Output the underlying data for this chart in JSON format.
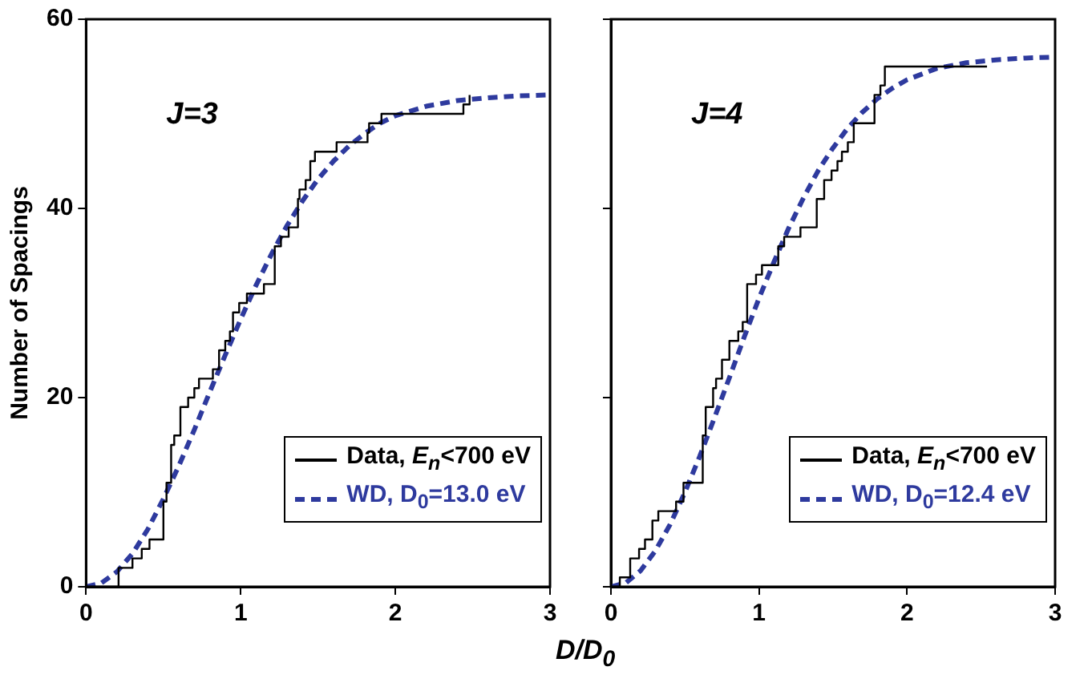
{
  "chart_data": [
    {
      "type": "line",
      "xlabel": "D/D$_{0}$",
      "ylabel": "Number of Spacings",
      "xlim": [
        0,
        3
      ],
      "xticks": [
        0,
        1,
        2,
        3
      ],
      "ylim": [
        0,
        60
      ],
      "yticks": [
        0,
        20,
        40,
        60
      ],
      "grid": false,
      "legend": "bottom right",
      "marker": "none",
      "annotations": [
        "J=3"
      ],
      "series": [
        {
          "name": "Data, E$_{n}$<700 eV",
          "type": "step",
          "color": "#000000",
          "line_style": "solid",
          "x": [
            0,
            0.21,
            0.3,
            0.36,
            0.41,
            0.5,
            0.52,
            0.55,
            0.57,
            0.61,
            0.66,
            0.7,
            0.73,
            0.82,
            0.86,
            0.9,
            0.93,
            0.95,
            0.99,
            1.04,
            1.15,
            1.22,
            1.26,
            1.31,
            1.37,
            1.38,
            1.42,
            1.45,
            1.48,
            1.62,
            1.82,
            1.83,
            1.91,
            2.44,
            2.48
          ],
          "values": [
            0,
            2,
            3,
            4,
            5,
            9,
            11,
            15,
            16,
            19,
            20,
            21,
            22,
            23,
            25,
            26,
            27,
            29,
            30,
            31,
            32,
            36,
            37,
            38,
            41,
            42,
            43,
            45,
            46,
            47,
            48,
            49,
            50,
            51,
            52
          ]
        },
        {
          "name": "WD, D$_{0}$=13.0 eV",
          "type": "line",
          "color": "#2e3a9e",
          "line_style": "dashed",
          "x": [
            0,
            0.1,
            0.2,
            0.3,
            0.4,
            0.5,
            0.6,
            0.7,
            0.8,
            0.9,
            1.0,
            1.1,
            1.2,
            1.3,
            1.4,
            1.5,
            1.6,
            1.7,
            1.8,
            1.9,
            2.0,
            2.2,
            2.4,
            2.6,
            2.8,
            3.0
          ],
          "values": [
            0,
            0.4,
            1.6,
            3.5,
            6.1,
            9.3,
            12.8,
            16.6,
            20.6,
            24.5,
            28.3,
            31.9,
            35.2,
            38.2,
            40.8,
            43.1,
            45.0,
            46.6,
            47.9,
            49.0,
            49.8,
            50.8,
            51.4,
            51.7,
            51.9,
            52.0
          ]
        }
      ]
    },
    {
      "type": "line",
      "xlim": [
        0,
        3
      ],
      "xticks": [
        0,
        1,
        2,
        3
      ],
      "ylim": [
        0,
        60
      ],
      "yticks": [
        0,
        20,
        40,
        60
      ],
      "tick_labels": "x",
      "grid": false,
      "legend": "bottom right",
      "marker": "none",
      "annotations": [
        "J=4"
      ],
      "series": [
        {
          "name": "Data, E$_{n}$<700 eV",
          "type": "step",
          "color": "#000000",
          "line_style": "solid",
          "x": [
            0,
            0.06,
            0.13,
            0.19,
            0.23,
            0.28,
            0.32,
            0.44,
            0.49,
            0.62,
            0.64,
            0.69,
            0.71,
            0.75,
            0.8,
            0.86,
            0.89,
            0.92,
            0.98,
            1.02,
            1.13,
            1.17,
            1.28,
            1.39,
            1.44,
            1.49,
            1.53,
            1.56,
            1.6,
            1.64,
            1.78,
            1.82,
            1.85,
            2.54
          ],
          "values": [
            0,
            1,
            3,
            4,
            5,
            7,
            8,
            9,
            11,
            16,
            19,
            21,
            22,
            24,
            26,
            27,
            28,
            32,
            33,
            34,
            36,
            37,
            38,
            41,
            43,
            44,
            45,
            46,
            47,
            49,
            52,
            53,
            55,
            55
          ]
        },
        {
          "name": "WD, D$_{0}$=12.4 eV",
          "type": "line",
          "color": "#2e3a9e",
          "line_style": "dashed",
          "x": [
            0,
            0.1,
            0.2,
            0.3,
            0.4,
            0.5,
            0.6,
            0.7,
            0.8,
            0.9,
            1.0,
            1.1,
            1.2,
            1.3,
            1.4,
            1.5,
            1.6,
            1.7,
            1.8,
            1.9,
            2.0,
            2.2,
            2.4,
            2.6,
            2.8,
            3.0
          ],
          "values": [
            0,
            0.4,
            1.7,
            3.8,
            6.6,
            10.0,
            13.8,
            17.9,
            22.1,
            26.4,
            30.5,
            34.3,
            37.9,
            41.1,
            44.0,
            46.4,
            48.5,
            50.2,
            51.6,
            52.7,
            53.6,
            54.8,
            55.4,
            55.7,
            55.9,
            56.0
          ]
        }
      ]
    }
  ]
}
